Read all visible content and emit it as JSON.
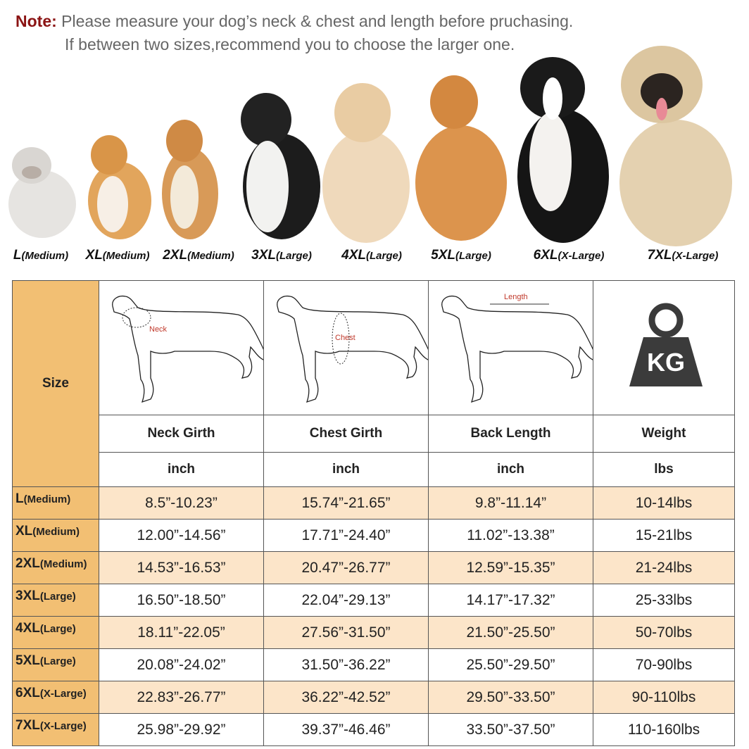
{
  "note": {
    "label": "Note:",
    "line1": "Please measure your dog’s neck & chest and length before pruchasing.",
    "line2": "If between two sizes,recommend you to choose the larger one."
  },
  "dogs": [
    {
      "size": "L",
      "fit": "(Medium)"
    },
    {
      "size": "XL",
      "fit": "(Medium)"
    },
    {
      "size": "2XL",
      "fit": "(Medium)"
    },
    {
      "size": "3XL",
      "fit": "(Large)"
    },
    {
      "size": "4XL",
      "fit": "(Large)"
    },
    {
      "size": "5XL",
      "fit": "(Large)"
    },
    {
      "size": "6XL",
      "fit": "(X-Large)"
    },
    {
      "size": "7XL",
      "fit": "(X-Large)"
    }
  ],
  "table": {
    "size_header": "Size",
    "diagram_labels": {
      "neck": "Neck",
      "chest": "Chest",
      "length": "Length",
      "weight_icon": "KG"
    },
    "columns": [
      "Neck Girth",
      "Chest Girth",
      "Back Length",
      "Weight"
    ],
    "units": [
      "inch",
      "inch",
      "inch",
      "lbs"
    ],
    "rows": [
      {
        "size": "L",
        "fit": "(Medium)",
        "cells": [
          "8.5”-10.23”",
          "15.74”-21.65”",
          "9.8”-11.14”",
          "10-14lbs"
        ]
      },
      {
        "size": "XL",
        "fit": "(Medium)",
        "cells": [
          "12.00”-14.56”",
          "17.71”-24.40”",
          "11.02”-13.38”",
          "15-21lbs"
        ]
      },
      {
        "size": "2XL",
        "fit": "(Medium)",
        "cells": [
          "14.53”-16.53”",
          "20.47”-26.77”",
          "12.59”-15.35”",
          "21-24lbs"
        ]
      },
      {
        "size": "3XL",
        "fit": "(Large)",
        "cells": [
          "16.50”-18.50”",
          "22.04”-29.13”",
          "14.17”-17.32”",
          "25-33lbs"
        ]
      },
      {
        "size": "4XL",
        "fit": "(Large)",
        "cells": [
          "18.11”-22.05”",
          "27.56”-31.50”",
          "21.50”-25.50”",
          "50-70lbs"
        ]
      },
      {
        "size": "5XL",
        "fit": "(Large)",
        "cells": [
          "20.08”-24.02”",
          "31.50”-36.22”",
          "25.50”-29.50”",
          "70-90lbs"
        ]
      },
      {
        "size": "6XL",
        "fit": "(X-Large)",
        "cells": [
          "22.83”-26.77”",
          "36.22”-42.52”",
          "29.50”-33.50”",
          "90-110lbs"
        ]
      },
      {
        "size": "7XL",
        "fit": "(X-Large)",
        "cells": [
          "25.98”-29.92”",
          "39.37”-46.46”",
          "33.50”-37.50”",
          "110-160lbs"
        ]
      }
    ]
  }
}
